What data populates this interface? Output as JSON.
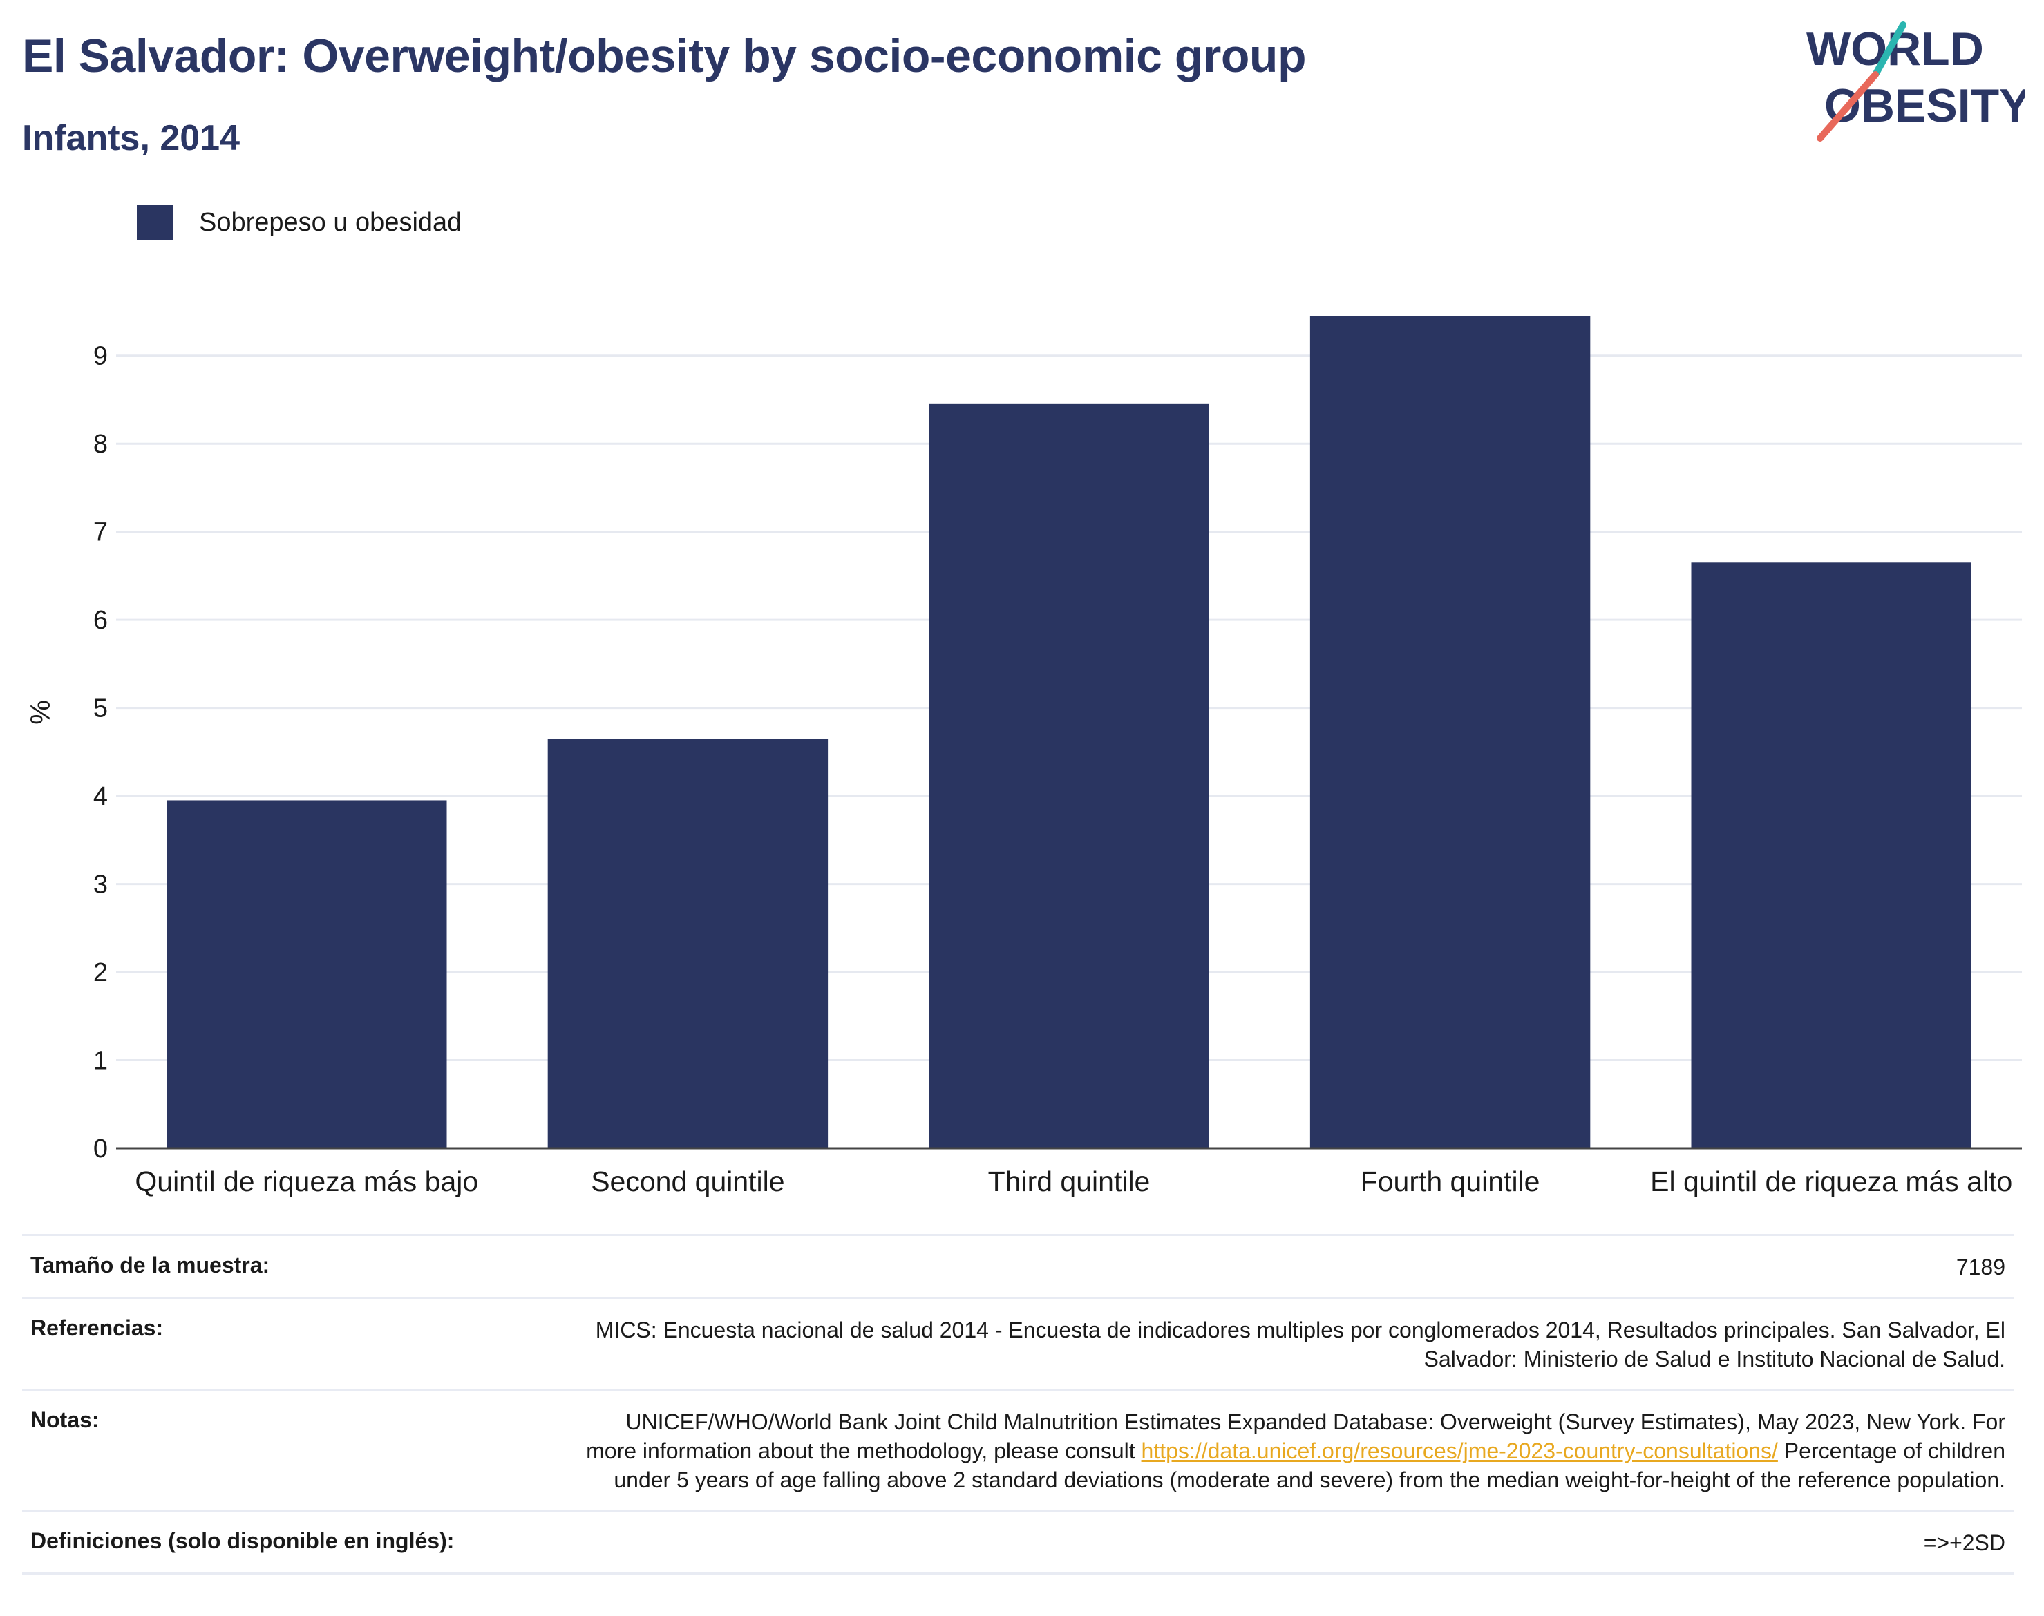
{
  "header": {
    "title": "El Salvador: Overweight/obesity by socio-economic group",
    "subtitle": "Infants, 2014"
  },
  "logo": {
    "line1": "WORLD",
    "line2": "OBESITY"
  },
  "legend": {
    "label": "Sobrepeso u obesidad"
  },
  "colors": {
    "bar": "#2a3561",
    "title": "#2b3664",
    "grid": "#e6e9f0",
    "link": "#e8a820",
    "logo_teal": "#2bb5b0",
    "logo_coral": "#e8685a"
  },
  "chart_data": {
    "type": "bar",
    "categories": [
      "Quintil de riqueza más bajo",
      "Second quintile",
      "Third quintile",
      "Fourth quintile",
      "El quintil de riqueza más alto"
    ],
    "series": [
      {
        "name": "Sobrepeso u obesidad",
        "values": [
          3.95,
          4.65,
          8.45,
          9.45,
          6.65
        ]
      }
    ],
    "ylabel": "%",
    "ylim": [
      0,
      9.9
    ],
    "yticks": [
      0,
      1,
      2,
      3,
      4,
      5,
      6,
      7,
      8,
      9
    ],
    "grid": true,
    "legend_position": "top-left"
  },
  "info": {
    "sample_size_label": "Tamaño de la muestra:",
    "sample_size_value": "7189",
    "references_label": "Referencias:",
    "references_value": "MICS: Encuesta nacional de salud 2014 - Encuesta de indicadores multiples por conglomerados 2014, Resultados principales. San Salvador, El Salvador: Ministerio de Salud e Instituto Nacional de Salud.",
    "notes_label": "Notas:",
    "notes_text_1": "UNICEF/WHO/World Bank Joint Child Malnutrition Estimates Expanded Database: Overweight (Survey Estimates), May 2023, New York. For more information about the methodology, please consult ",
    "notes_link": "https://data.unicef.org/resources/jme-2023-country-consultations/",
    "notes_text_2": " Percentage of children under 5 years of age falling above 2 standard deviations (moderate and severe) from the median weight-for-height of the reference population.",
    "definitions_label": "Definiciones (solo disponible en inglés):",
    "definitions_value": "=>+2SD"
  }
}
